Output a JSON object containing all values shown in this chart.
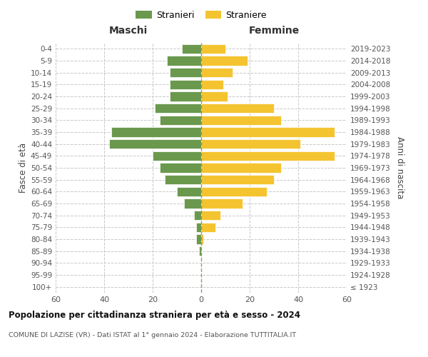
{
  "age_groups": [
    "100+",
    "95-99",
    "90-94",
    "85-89",
    "80-84",
    "75-79",
    "70-74",
    "65-69",
    "60-64",
    "55-59",
    "50-54",
    "45-49",
    "40-44",
    "35-39",
    "30-34",
    "25-29",
    "20-24",
    "15-19",
    "10-14",
    "5-9",
    "0-4"
  ],
  "birth_years": [
    "≤ 1923",
    "1924-1928",
    "1929-1933",
    "1934-1938",
    "1939-1943",
    "1944-1948",
    "1949-1953",
    "1954-1958",
    "1959-1963",
    "1964-1968",
    "1969-1973",
    "1974-1978",
    "1979-1983",
    "1984-1988",
    "1989-1993",
    "1994-1998",
    "1999-2003",
    "2004-2008",
    "2009-2013",
    "2014-2018",
    "2019-2023"
  ],
  "maschi": [
    0,
    0,
    0,
    1,
    2,
    2,
    3,
    7,
    10,
    15,
    17,
    20,
    38,
    37,
    17,
    19,
    13,
    13,
    13,
    14,
    8
  ],
  "femmine": [
    0,
    0,
    0,
    0,
    1,
    6,
    8,
    17,
    27,
    30,
    33,
    55,
    41,
    55,
    33,
    30,
    11,
    9,
    13,
    19,
    10
  ],
  "maschi_color": "#6a994e",
  "femmine_color": "#f4c430",
  "bar_edge_color": "white",
  "background_color": "#ffffff",
  "grid_color": "#c8c8c8",
  "title": "Popolazione per cittadinanza straniera per età e sesso - 2024",
  "subtitle": "COMUNE DI LAZISE (VR) - Dati ISTAT al 1° gennaio 2024 - Elaborazione TUTTITALIA.IT",
  "legend_stranieri": "Stranieri",
  "legend_straniere": "Straniere",
  "label_maschi": "Maschi",
  "label_femmine": "Femmine",
  "ylabel_left": "Fasce di età",
  "ylabel_right": "Anni di nascita",
  "xlim": 60
}
